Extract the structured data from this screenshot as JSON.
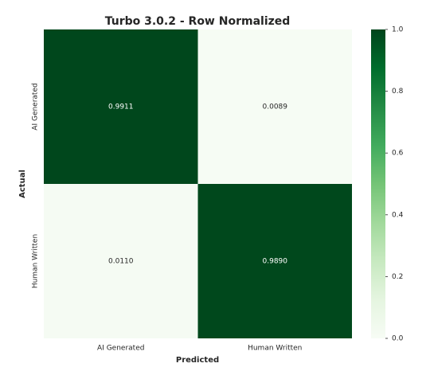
{
  "chart_data": {
    "type": "heatmap",
    "title": "Turbo 3.0.2 - Row Normalized",
    "x_label": "Predicted",
    "y_label": "Actual",
    "x_categories": [
      "AI Generated",
      "Human Written"
    ],
    "y_categories": [
      "AI Generated",
      "Human Written"
    ],
    "values": [
      [
        0.9911,
        0.0089
      ],
      [
        0.011,
        0.989
      ]
    ],
    "value_labels": [
      [
        "0.9911",
        "0.0089"
      ],
      [
        "0.0110",
        "0.9890"
      ]
    ],
    "clim": [
      0,
      1
    ],
    "cticks": [
      {
        "value": 0,
        "label": "0.0"
      },
      {
        "value": 0.2,
        "label": "0.2"
      },
      {
        "value": 0.4,
        "label": "0.4"
      },
      {
        "value": 0.6,
        "label": "0.6"
      },
      {
        "value": 0.8,
        "label": "0.8"
      },
      {
        "value": 1,
        "label": "1.0"
      }
    ],
    "colormap": [
      "#f7fcf5",
      "#e5f5e0",
      "#c7e9c0",
      "#a1d99b",
      "#74c476",
      "#41ab5d",
      "#238b45",
      "#006d2c",
      "#00441b"
    ]
  }
}
